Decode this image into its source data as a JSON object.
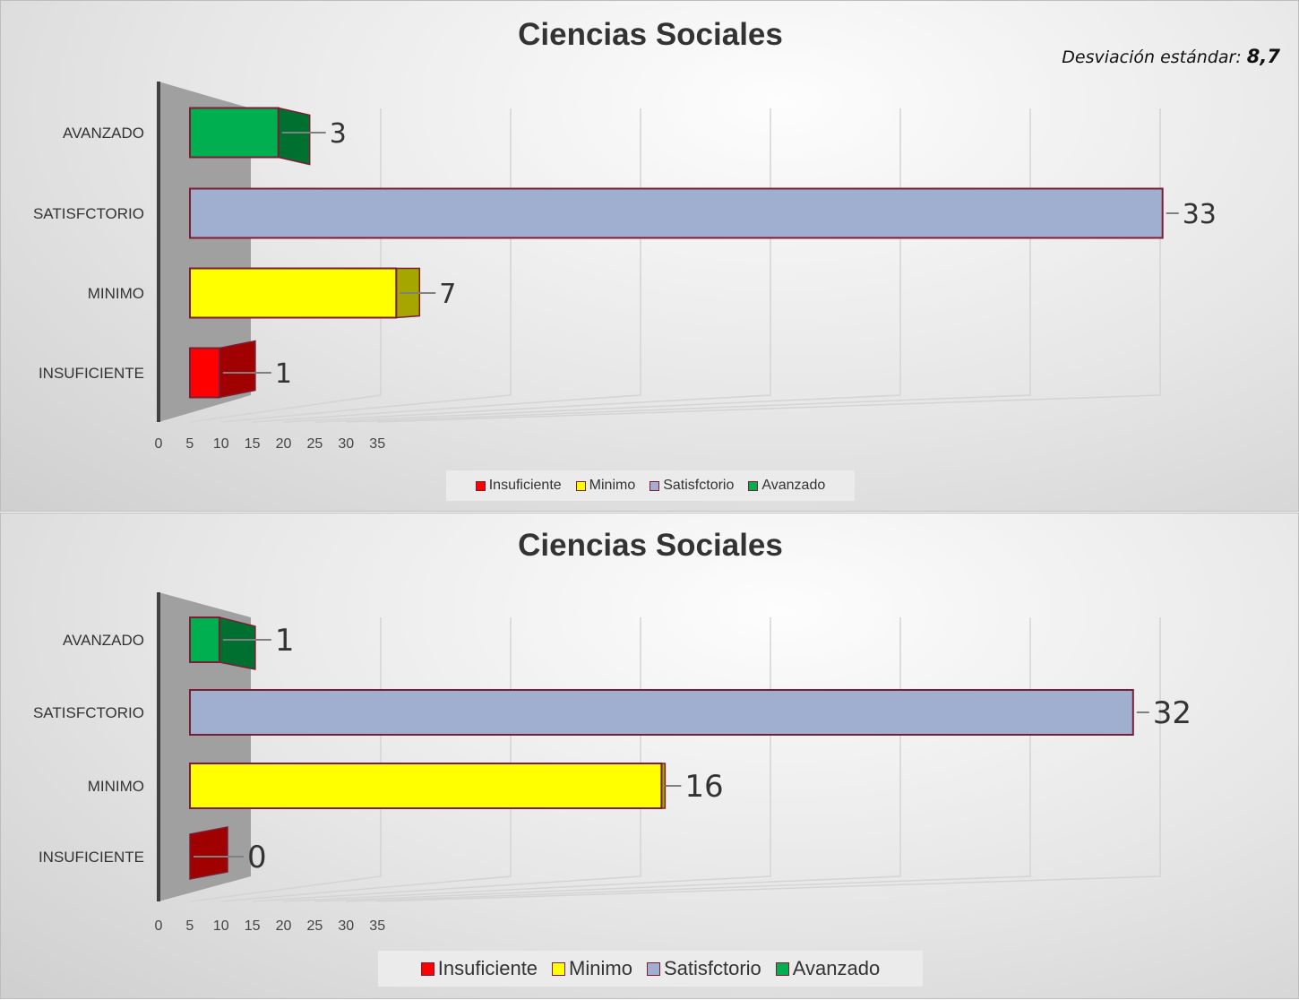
{
  "colors": {
    "Insuficiente": "#ff0000",
    "Minimo": "#ffff00",
    "Satisfctorio": "#a0aed0",
    "Avanzado": "#00b050",
    "border": "#7a1f33"
  },
  "chart_data": [
    {
      "type": "bar",
      "orientation": "horizontal",
      "title": "Ciencias Sociales",
      "annotation_label": "Desviación estándar:",
      "annotation_value": "8,7",
      "categories": [
        "INSUFICIENTE",
        "MINIMO",
        "SATISFCTORIO",
        "AVANZADO"
      ],
      "values": [
        1,
        7,
        33,
        3
      ],
      "xlim": [
        0,
        35
      ],
      "xticks": [
        "0",
        "5",
        "10",
        "15",
        "20",
        "25",
        "30",
        "35"
      ],
      "legend": [
        "Insuficiente",
        "Minimo",
        "Satisfctorio",
        "Avanzado"
      ],
      "legend_position": "bottom"
    },
    {
      "type": "bar",
      "orientation": "horizontal",
      "title": "Ciencias Sociales",
      "categories": [
        "INSUFICIENTE",
        "MINIMO",
        "SATISFCTORIO",
        "AVANZADO"
      ],
      "values": [
        0,
        16,
        32,
        1
      ],
      "xlim": [
        0,
        35
      ],
      "xticks": [
        "0",
        "5",
        "10",
        "15",
        "20",
        "25",
        "30",
        "35"
      ],
      "legend": [
        "Insuficiente",
        "Minimo",
        "Satisfctorio",
        "Avanzado"
      ],
      "legend_position": "bottom"
    }
  ]
}
